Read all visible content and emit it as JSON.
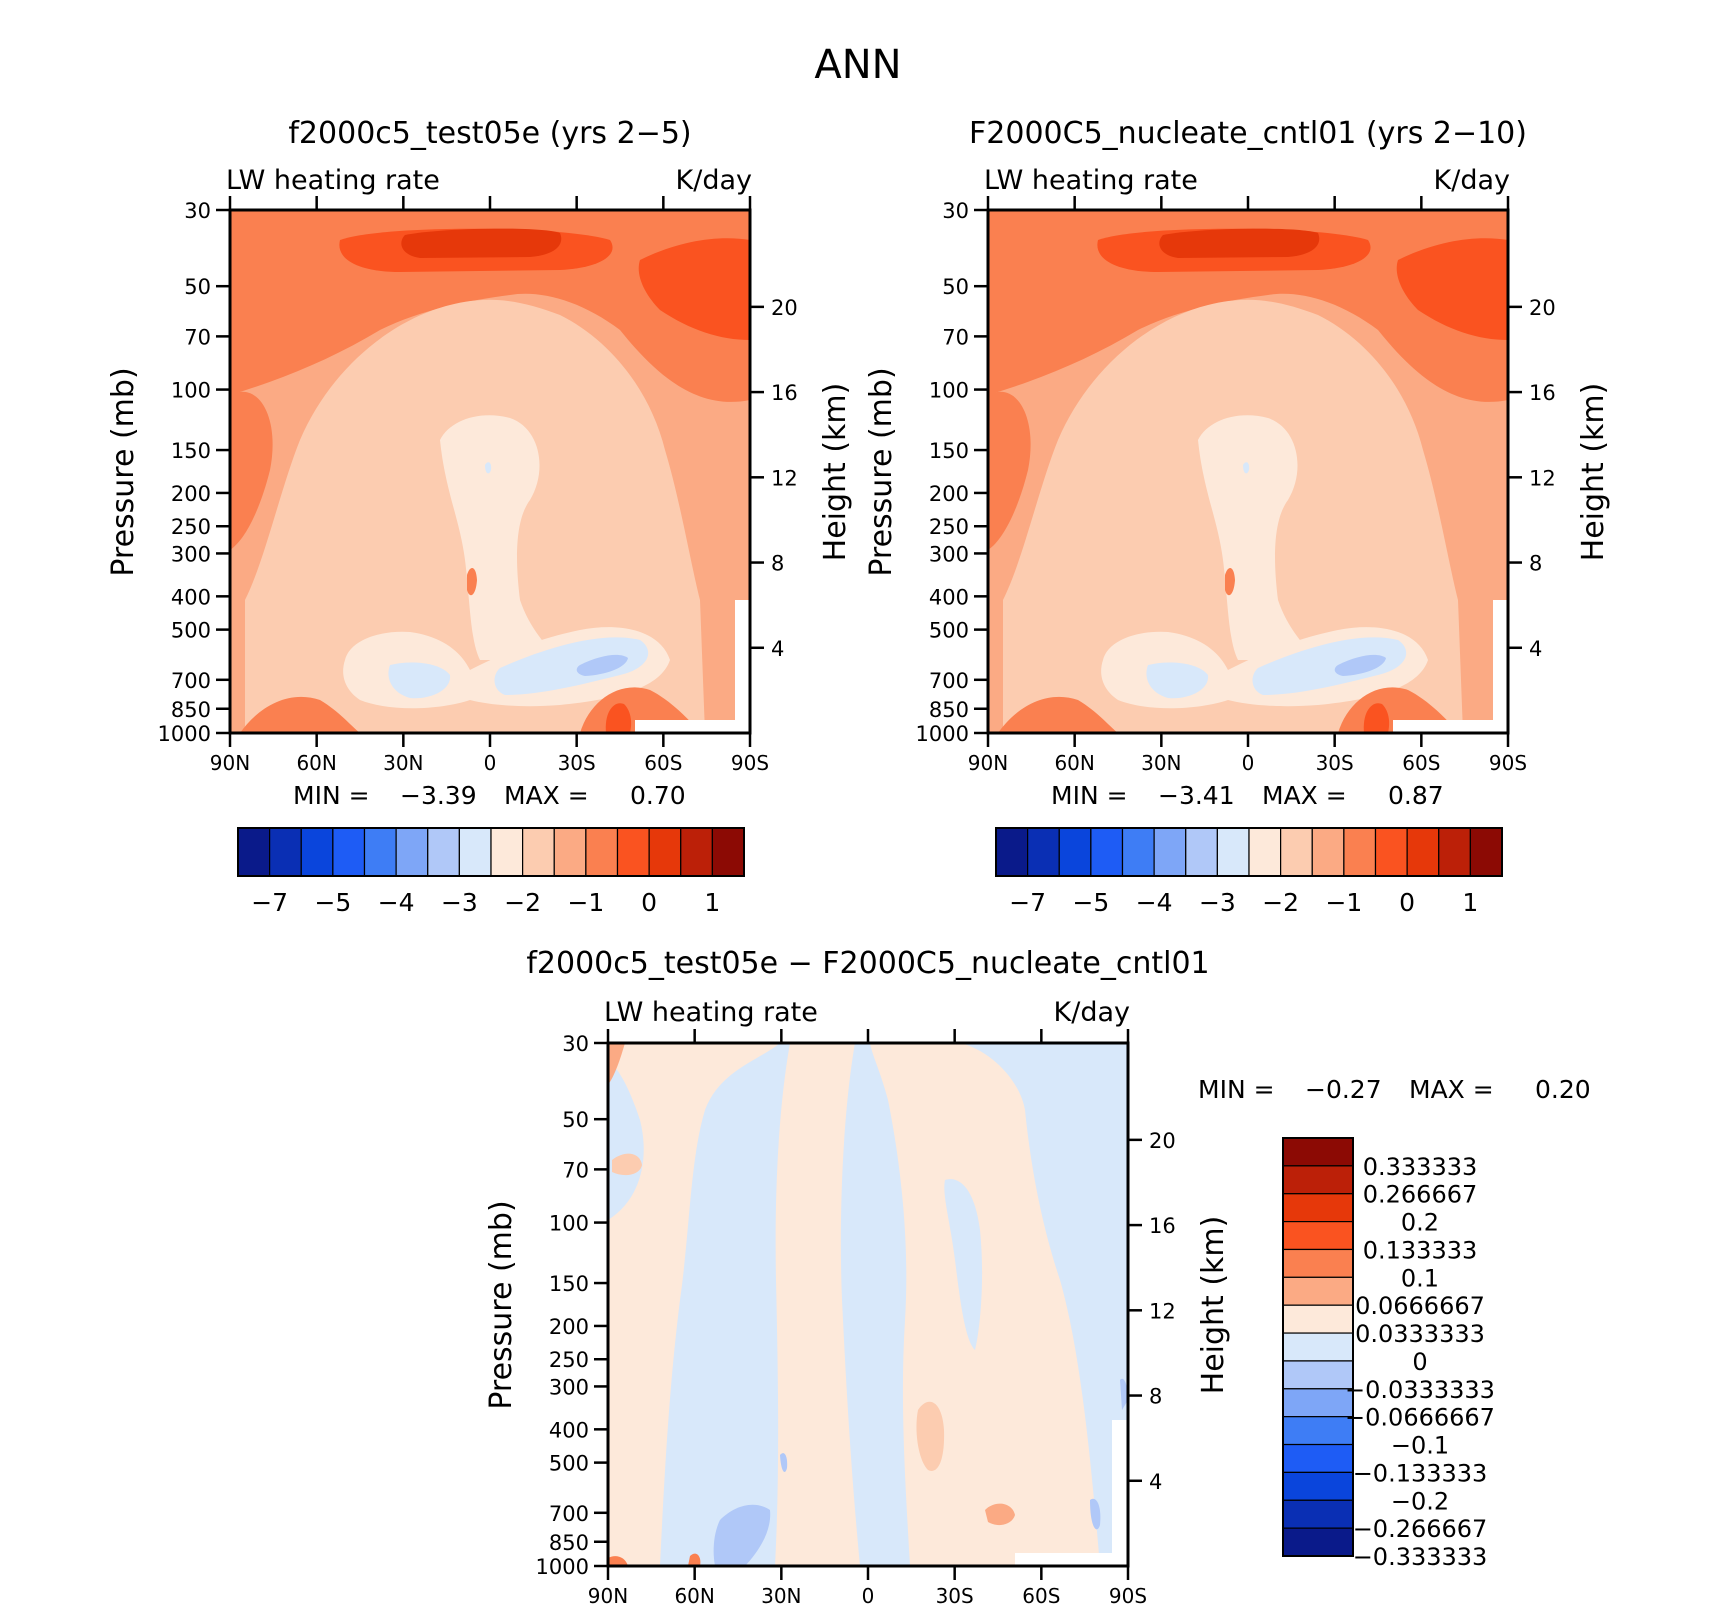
{
  "figure_title": "ANN",
  "chart_data": [
    {
      "type": "heatmap",
      "title": "f2000c5_test05e (yrs 2−5)",
      "left_header": "LW heating rate",
      "right_header": "K/day",
      "ylabel": "Pressure (mb)",
      "ylabel_right": "Height (km)",
      "x_ticks": [
        "90N",
        "60N",
        "30N",
        "0",
        "30S",
        "60S",
        "90S"
      ],
      "y_ticks": [
        "30",
        "50",
        "70",
        "100",
        "150",
        "200",
        "250",
        "300",
        "400",
        "500",
        "700",
        "850",
        "1000"
      ],
      "height_ticks": [
        "20",
        "16",
        "12",
        "8",
        "4"
      ],
      "min_label": "MIN =",
      "min_value": "−3.39",
      "max_label": "MAX =",
      "max_value": "0.70",
      "colorbar_labels": [
        "−7",
        "−5",
        "−4",
        "−3",
        "−2",
        "−1",
        "0",
        "1"
      ]
    },
    {
      "type": "heatmap",
      "title": "F2000C5_nucleate_cntl01 (yrs 2−10)",
      "left_header": "LW heating rate",
      "right_header": "K/day",
      "ylabel": "Pressure (mb)",
      "ylabel_right": "Height (km)",
      "x_ticks": [
        "90N",
        "60N",
        "30N",
        "0",
        "30S",
        "60S",
        "90S"
      ],
      "y_ticks": [
        "30",
        "50",
        "70",
        "100",
        "150",
        "200",
        "250",
        "300",
        "400",
        "500",
        "700",
        "850",
        "1000"
      ],
      "height_ticks": [
        "20",
        "16",
        "12",
        "8",
        "4"
      ],
      "min_label": "MIN =",
      "min_value": "−3.41",
      "max_label": "MAX =",
      "max_value": "0.87",
      "colorbar_labels": [
        "−7",
        "−5",
        "−4",
        "−3",
        "−2",
        "−1",
        "0",
        "1"
      ]
    },
    {
      "type": "heatmap",
      "title": "f2000c5_test05e − F2000C5_nucleate_cntl01",
      "left_header": "LW heating rate",
      "right_header": "K/day",
      "ylabel": "Pressure (mb)",
      "ylabel_right": "Height (km)",
      "x_ticks": [
        "90N",
        "60N",
        "30N",
        "0",
        "30S",
        "60S",
        "90S"
      ],
      "y_ticks": [
        "30",
        "50",
        "70",
        "100",
        "150",
        "200",
        "250",
        "300",
        "400",
        "500",
        "700",
        "850",
        "1000"
      ],
      "height_ticks": [
        "20",
        "16",
        "12",
        "8",
        "4"
      ],
      "min_label": "MIN =",
      "min_value": "−0.27",
      "max_label": "MAX =",
      "max_value": "0.20",
      "colorbar_labels": [
        "0.333333",
        "0.266667",
        "0.2",
        "0.133333",
        "0.1",
        "0.0666667",
        "0.0333333",
        "0",
        "−0.0333333",
        "−0.0666667",
        "−0.1",
        "−0.133333",
        "−0.2",
        "−0.266667",
        "−0.333333"
      ]
    }
  ],
  "colors": {
    "panel_colors": [
      "#0a1a8a",
      "#0a2fb4",
      "#0a45dc",
      "#1e5cf5",
      "#3e7df5",
      "#7ea6f7",
      "#b0c8f8",
      "#d8e8fa",
      "#fde9da",
      "#fcccb0",
      "#fbaa84",
      "#fa8050",
      "#fa5320",
      "#e6380a",
      "#bc2008",
      "#8c0a04"
    ],
    "diff_colors": [
      "#8c0a04",
      "#bc2008",
      "#e6380a",
      "#fa5320",
      "#fa8050",
      "#fbaa84",
      "#fde9da",
      "#d8e8fa",
      "#b0c8f8",
      "#7ea6f7",
      "#3e7df5",
      "#1e5cf5",
      "#0a45dc",
      "#0a2fb4",
      "#0a1a8a"
    ]
  }
}
